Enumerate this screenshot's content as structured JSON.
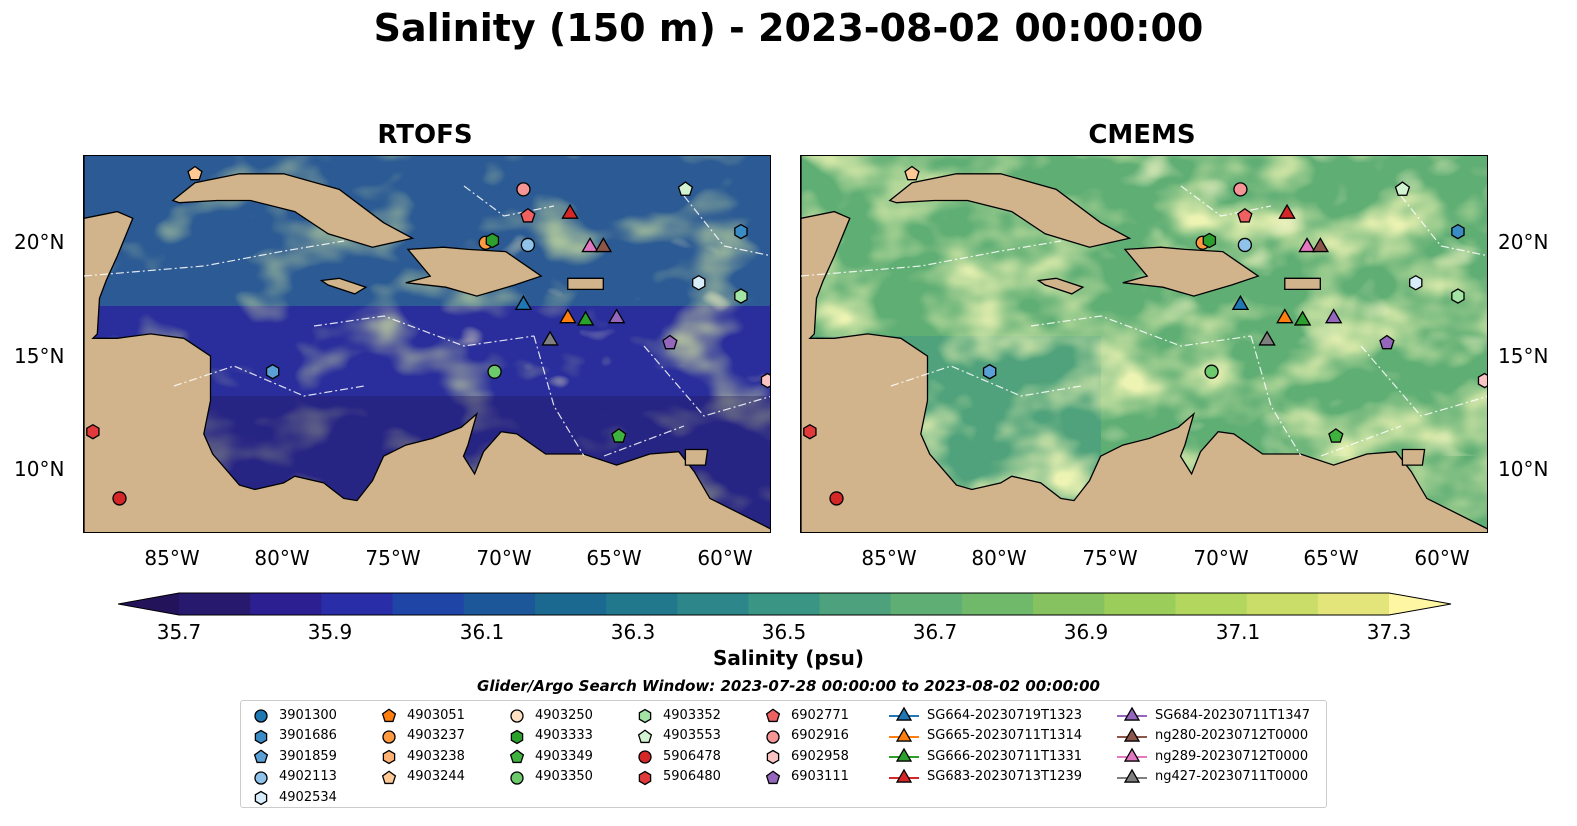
{
  "title": "Salinity (150 m) - 2023-08-02 00:00:00",
  "panels": [
    {
      "title": "RTOFS"
    },
    {
      "title": "CMEMS"
    }
  ],
  "x_ticks": [
    "85°W",
    "80°W",
    "75°W",
    "70°W",
    "65°W",
    "60°W"
  ],
  "y_ticks": [
    "20°N",
    "15°N",
    "10°N"
  ],
  "colorbar": {
    "label": "Salinity (psu)",
    "ticks": [
      "35.7",
      "35.9",
      "36.1",
      "36.3",
      "36.5",
      "36.7",
      "36.9",
      "37.1",
      "37.3"
    ],
    "colors": [
      "#271a6e",
      "#2c1f91",
      "#2a2da8",
      "#1f45a7",
      "#1b5799",
      "#1b6890",
      "#21778c",
      "#2d878a",
      "#3b9585",
      "#4da27d",
      "#5fae74",
      "#71b96a",
      "#86c360",
      "#9bcd5b",
      "#b2d65e",
      "#cadd69",
      "#e3e47a"
    ],
    "under_color": "#23135a",
    "over_color": "#fef6a3"
  },
  "legend_title": "Glider/Argo Search Window: 2023-07-28 00:00:00 to 2023-08-02 00:00:00",
  "legend": {
    "columns": [
      [
        {
          "label": "3901300",
          "marker": "circle",
          "color": "#1f77b4"
        },
        {
          "label": "3901686",
          "marker": "hexagon",
          "color": "#3b8bc4"
        },
        {
          "label": "3901859",
          "marker": "pentagon",
          "color": "#5aa0d6"
        },
        {
          "label": "4902113",
          "marker": "circle",
          "color": "#8fc3ea"
        },
        {
          "label": "4902534",
          "marker": "hexagon",
          "color": "#d8ecfa"
        }
      ],
      [
        {
          "label": "4903051",
          "marker": "pentagon",
          "color": "#ff7f0e"
        },
        {
          "label": "4903237",
          "marker": "circle",
          "color": "#ff9a40"
        },
        {
          "label": "4903238",
          "marker": "hexagon",
          "color": "#ffb272"
        },
        {
          "label": "4903244",
          "marker": "pentagon",
          "color": "#ffc996"
        }
      ],
      [
        {
          "label": "4903250",
          "marker": "circle",
          "color": "#ffe0c2"
        },
        {
          "label": "4903333",
          "marker": "hexagon",
          "color": "#2ca02c"
        },
        {
          "label": "4903349",
          "marker": "pentagon",
          "color": "#3fb13f"
        },
        {
          "label": "4903350",
          "marker": "circle",
          "color": "#6cc96c"
        }
      ],
      [
        {
          "label": "4903352",
          "marker": "hexagon",
          "color": "#a3e3a3"
        },
        {
          "label": "4903553",
          "marker": "pentagon",
          "color": "#d3f4d3"
        },
        {
          "label": "5906478",
          "marker": "circle",
          "color": "#d62728"
        },
        {
          "label": "5906480",
          "marker": "hexagon",
          "color": "#e03a3a"
        }
      ],
      [
        {
          "label": "6902771",
          "marker": "pentagon",
          "color": "#ef6060"
        },
        {
          "label": "6902916",
          "marker": "circle",
          "color": "#f59595"
        },
        {
          "label": "6902958",
          "marker": "hexagon",
          "color": "#fac4c4"
        },
        {
          "label": "6903111",
          "marker": "pentagon",
          "color": "#9467bd"
        }
      ],
      [
        {
          "label": "SG664-20230719T1323",
          "marker": "triangle",
          "color": "#1f77b4"
        },
        {
          "label": "SG665-20230711T1314",
          "marker": "triangle",
          "color": "#ff7f0e"
        },
        {
          "label": "SG666-20230711T1331",
          "marker": "triangle",
          "color": "#2ca02c"
        },
        {
          "label": "SG683-20230713T1239",
          "marker": "triangle",
          "color": "#d62728"
        }
      ],
      [
        {
          "label": "SG684-20230711T1347",
          "marker": "triangle",
          "color": "#9467bd"
        },
        {
          "label": "ng280-20230712T0000",
          "marker": "triangle",
          "color": "#8c564b"
        },
        {
          "label": "ng289-20230712T0000",
          "marker": "triangle",
          "color": "#e377c2"
        },
        {
          "label": "ng427-20230711T0000",
          "marker": "triangle",
          "color": "#7f7f7f"
        }
      ]
    ]
  },
  "observations": [
    {
      "marker": "pentagon",
      "color": "#ffc996",
      "lon": -84.0,
      "lat": 23.2
    },
    {
      "marker": "circle",
      "color": "#f59595",
      "lon": -69.2,
      "lat": 22.5
    },
    {
      "marker": "pentagon",
      "color": "#ef6060",
      "lon": -69.0,
      "lat": 21.3
    },
    {
      "marker": "triangle",
      "color": "#d62728",
      "lon": -67.1,
      "lat": 21.4
    },
    {
      "marker": "pentagon",
      "color": "#d3f4d3",
      "lon": -61.9,
      "lat": 22.5
    },
    {
      "marker": "hexagon",
      "color": "#3b8bc4",
      "lon": -59.4,
      "lat": 20.6
    },
    {
      "marker": "circle",
      "color": "#ff9a40",
      "lon": -70.9,
      "lat": 20.1
    },
    {
      "marker": "hexagon",
      "color": "#2ca02c",
      "lon": -70.6,
      "lat": 20.2
    },
    {
      "marker": "circle",
      "color": "#8fc3ea",
      "lon": -69.0,
      "lat": 20.0
    },
    {
      "marker": "triangle",
      "color": "#e377c2",
      "lon": -66.2,
      "lat": 19.9
    },
    {
      "marker": "triangle",
      "color": "#8c564b",
      "lon": -65.6,
      "lat": 19.9
    },
    {
      "marker": "hexagon",
      "color": "#d8ecfa",
      "lon": -61.3,
      "lat": 18.3
    },
    {
      "marker": "hexagon",
      "color": "#a3e3a3",
      "lon": -59.4,
      "lat": 17.7
    },
    {
      "marker": "triangle",
      "color": "#1f77b4",
      "lon": -69.2,
      "lat": 17.3
    },
    {
      "marker": "triangle",
      "color": "#ff7f0e",
      "lon": -67.2,
      "lat": 16.7
    },
    {
      "marker": "triangle",
      "color": "#2ca02c",
      "lon": -66.4,
      "lat": 16.6
    },
    {
      "marker": "triangle",
      "color": "#9467bd",
      "lon": -65.0,
      "lat": 16.7
    },
    {
      "marker": "triangle",
      "color": "#7f7f7f",
      "lon": -68.0,
      "lat": 15.7
    },
    {
      "marker": "pentagon",
      "color": "#9467bd",
      "lon": -62.6,
      "lat": 15.6
    },
    {
      "marker": "hexagon",
      "color": "#5aa0d6",
      "lon": -80.5,
      "lat": 14.3
    },
    {
      "marker": "circle",
      "color": "#6cc96c",
      "lon": -70.5,
      "lat": 14.3
    },
    {
      "marker": "hexagon",
      "color": "#fac4c4",
      "lon": -58.2,
      "lat": 13.9
    },
    {
      "marker": "pentagon",
      "color": "#3fb13f",
      "lon": -64.9,
      "lat": 11.4
    },
    {
      "marker": "hexagon",
      "color": "#e03a3a",
      "lon": -88.6,
      "lat": 11.6
    },
    {
      "marker": "circle",
      "color": "#d62728",
      "lon": -87.4,
      "lat": 8.6
    }
  ]
}
